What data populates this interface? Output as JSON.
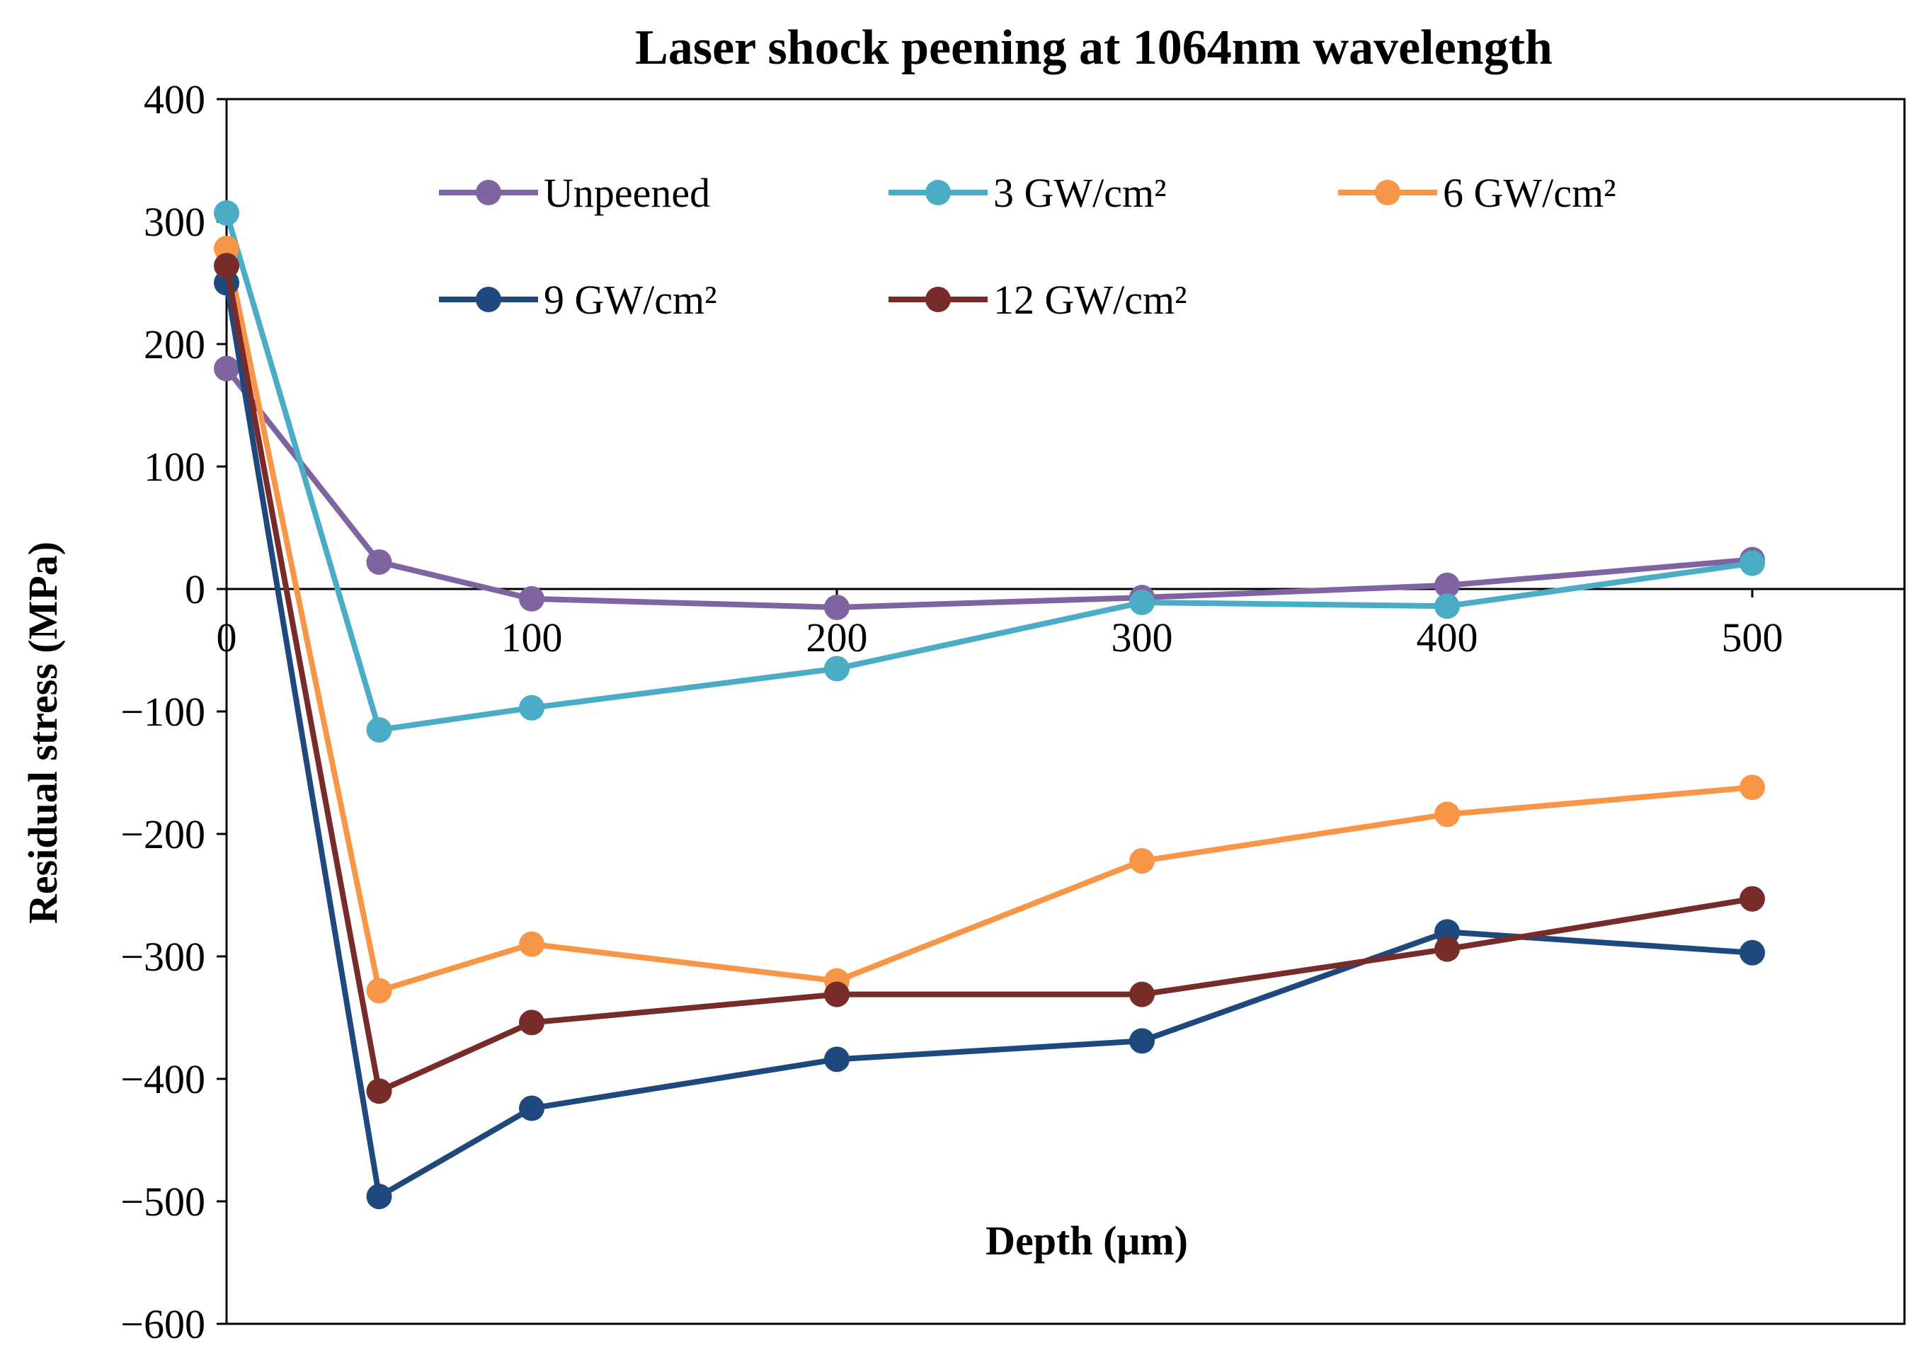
{
  "chart_data": {
    "type": "line",
    "title": "Laser shock peening at 1064nm wavelength",
    "xlabel": "Depth  (μm)",
    "ylabel": "Residual stress (MPa)",
    "x": [
      0,
      50,
      100,
      200,
      300,
      400,
      500
    ],
    "xticks": [
      0,
      100,
      200,
      300,
      400,
      500
    ],
    "yticks": [
      400,
      300,
      200,
      100,
      0,
      -100,
      -200,
      -300,
      -400,
      -500,
      -600
    ],
    "ytick_labels": [
      "400",
      "300",
      "200",
      "100",
      "0",
      "−100",
      "−200",
      "−300",
      "−400",
      "−500",
      "−600"
    ],
    "ylim": [
      -600,
      400
    ],
    "grid": false,
    "legend_position": "top-center",
    "series": [
      {
        "name": "Unpeened",
        "color": "#8064A2",
        "values": [
          180,
          22,
          -8,
          -15,
          -7,
          3,
          24
        ]
      },
      {
        "name": "3 GW/cm²",
        "color": "#4BACC6",
        "values": [
          307,
          -115,
          -97,
          -65,
          -11,
          -14,
          21
        ]
      },
      {
        "name": "6 GW/cm²",
        "color": "#F79646",
        "values": [
          278,
          -328,
          -290,
          -320,
          -222,
          -184,
          -162
        ]
      },
      {
        "name": "9 GW/cm²",
        "color": "#1F497D",
        "values": [
          250,
          -496,
          -424,
          -384,
          -369,
          -280,
          -297
        ]
      },
      {
        "name": "12 GW/cm²",
        "color": "#772C2A",
        "values": [
          264,
          -410,
          -354,
          -331,
          -331,
          -294,
          -253
        ]
      }
    ]
  }
}
